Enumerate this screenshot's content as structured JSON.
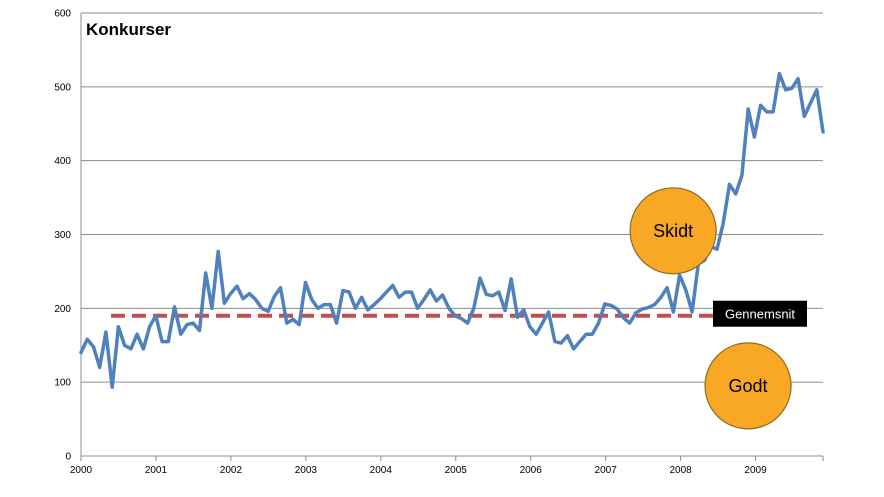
{
  "chart_data": {
    "type": "line",
    "title": "Konkurser",
    "xlabel": "",
    "ylabel": "",
    "xlim": [
      2000,
      2009.9
    ],
    "ylim": [
      0,
      600
    ],
    "y_ticks": [
      0,
      100,
      200,
      300,
      400,
      500,
      600
    ],
    "x_ticks": [
      {
        "value": 2000,
        "label": "2000"
      },
      {
        "value": 2001,
        "label": "2001"
      },
      {
        "value": 2002,
        "label": "2002"
      },
      {
        "value": 2003,
        "label": "2003"
      },
      {
        "value": 2004,
        "label": "2004"
      },
      {
        "value": 2005,
        "label": "2005"
      },
      {
        "value": 2006,
        "label": "2006"
      },
      {
        "value": 2007,
        "label": "2007"
      },
      {
        "value": 2008,
        "label": "2008"
      },
      {
        "value": 2009,
        "label": "2009"
      }
    ],
    "grid": "horizontal",
    "series_color": "#4F81BD",
    "series": [
      {
        "values": [
          140,
          158,
          148,
          120,
          168,
          93,
          175,
          150,
          145,
          165,
          145,
          175,
          190,
          155,
          155,
          202,
          165,
          178,
          180,
          170,
          248,
          200,
          277,
          207,
          220,
          230,
          213,
          220,
          212,
          200,
          196,
          216,
          228,
          180,
          185,
          178,
          235,
          212,
          200,
          205,
          205,
          180,
          224,
          222,
          200,
          215,
          198,
          205,
          213,
          222,
          231,
          215,
          222,
          222,
          200,
          212,
          225,
          210,
          218,
          200,
          190,
          186,
          180,
          200,
          241,
          219,
          217,
          222,
          197,
          240,
          188,
          198,
          175,
          165,
          180,
          195,
          155,
          153,
          163,
          145,
          155,
          165,
          165,
          180,
          206,
          204,
          199,
          187,
          180,
          194,
          199,
          201,
          205,
          215,
          228,
          195,
          245,
          225,
          195,
          260,
          265,
          284,
          280,
          315,
          368,
          355,
          380,
          470,
          432,
          475,
          466,
          466,
          518,
          496,
          498,
          511,
          460,
          478,
          496,
          439
        ]
      }
    ],
    "average": {
      "value": 190,
      "label": "Gennemsnit",
      "color": "#C0504D"
    },
    "annotations": [
      {
        "text": "Skidt",
        "x": 2007.9,
        "y": 305
      },
      {
        "text": "Godt",
        "x": 2008.9,
        "y": 95
      }
    ],
    "bubble_color": "#F9A825"
  }
}
